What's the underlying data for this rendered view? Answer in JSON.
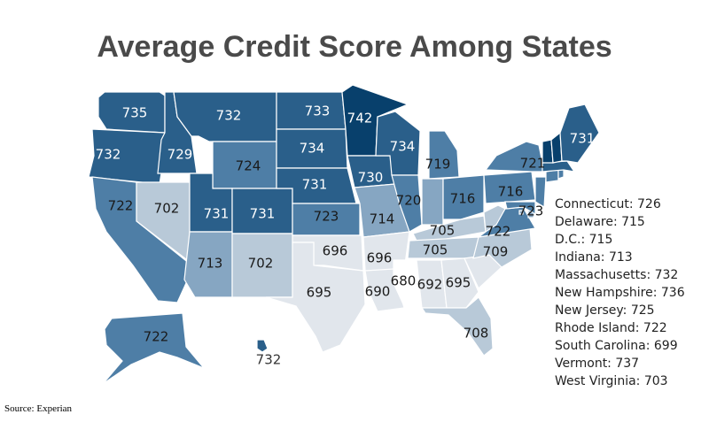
{
  "title": "Average Credit Score Among States",
  "source": "Source: Experian",
  "colors": {
    "scale": [
      "#ffffff",
      "#e1e6ec",
      "#b8c9d8",
      "#86a6c2",
      "#4e7ea6",
      "#2a5f8a",
      "#08406c"
    ],
    "border": "#ffffff",
    "text": "#1a1a1a",
    "text_light": "#ffffff"
  },
  "map_data": {
    "type": "choropleth",
    "states": [
      {
        "name": "WA",
        "value": 735
      },
      {
        "name": "OR",
        "value": 732
      },
      {
        "name": "CA",
        "value": 722
      },
      {
        "name": "ID",
        "value": 729
      },
      {
        "name": "NV",
        "value": 702
      },
      {
        "name": "MT",
        "value": 732
      },
      {
        "name": "WY",
        "value": 724
      },
      {
        "name": "UT",
        "value": 731
      },
      {
        "name": "CO",
        "value": 731
      },
      {
        "name": "AZ",
        "value": 713
      },
      {
        "name": "NM",
        "value": 702
      },
      {
        "name": "ND",
        "value": 733
      },
      {
        "name": "SD",
        "value": 734
      },
      {
        "name": "NE",
        "value": 731
      },
      {
        "name": "KS",
        "value": 723
      },
      {
        "name": "OK",
        "value": 696
      },
      {
        "name": "TX",
        "value": 695
      },
      {
        "name": "MN",
        "value": 742
      },
      {
        "name": "IA",
        "value": 730
      },
      {
        "name": "MO",
        "value": 714
      },
      {
        "name": "AR",
        "value": 696
      },
      {
        "name": "LA",
        "value": 690
      },
      {
        "name": "WI",
        "value": 734
      },
      {
        "name": "IL",
        "value": 720
      },
      {
        "name": "MI",
        "value": 719
      },
      {
        "name": "IN",
        "value": 713
      },
      {
        "name": "OH",
        "value": 716
      },
      {
        "name": "KY",
        "value": 705
      },
      {
        "name": "TN",
        "value": 705
      },
      {
        "name": "MS",
        "value": 680
      },
      {
        "name": "AL",
        "value": 692
      },
      {
        "name": "GA",
        "value": 695
      },
      {
        "name": "FL",
        "value": 708
      },
      {
        "name": "SC",
        "value": 699
      },
      {
        "name": "NC",
        "value": 709
      },
      {
        "name": "VA",
        "value": 722
      },
      {
        "name": "WV",
        "value": 703
      },
      {
        "name": "PA",
        "value": 716
      },
      {
        "name": "NY",
        "value": 721
      },
      {
        "name": "NJ",
        "value": 725
      },
      {
        "name": "DE",
        "value": 715
      },
      {
        "name": "MD",
        "value": 723
      },
      {
        "name": "DC",
        "value": 715
      },
      {
        "name": "CT",
        "value": 726
      },
      {
        "name": "RI",
        "value": 722
      },
      {
        "name": "MA",
        "value": 732
      },
      {
        "name": "VT",
        "value": 737
      },
      {
        "name": "NH",
        "value": 736
      },
      {
        "name": "ME",
        "value": 731
      },
      {
        "name": "AK",
        "value": 722
      },
      {
        "name": "HI",
        "value": 732
      }
    ]
  },
  "side_list": [
    "Connecticut: 726",
    "Delaware: 715",
    "D.C.: 715",
    "Indiana: 713",
    "Massachusetts: 732",
    "New Hampshire: 736",
    "New Jersey: 725",
    "Rhode Island: 722",
    "South Carolina: 699",
    "Vermont: 737",
    "West Virginia: 703"
  ]
}
